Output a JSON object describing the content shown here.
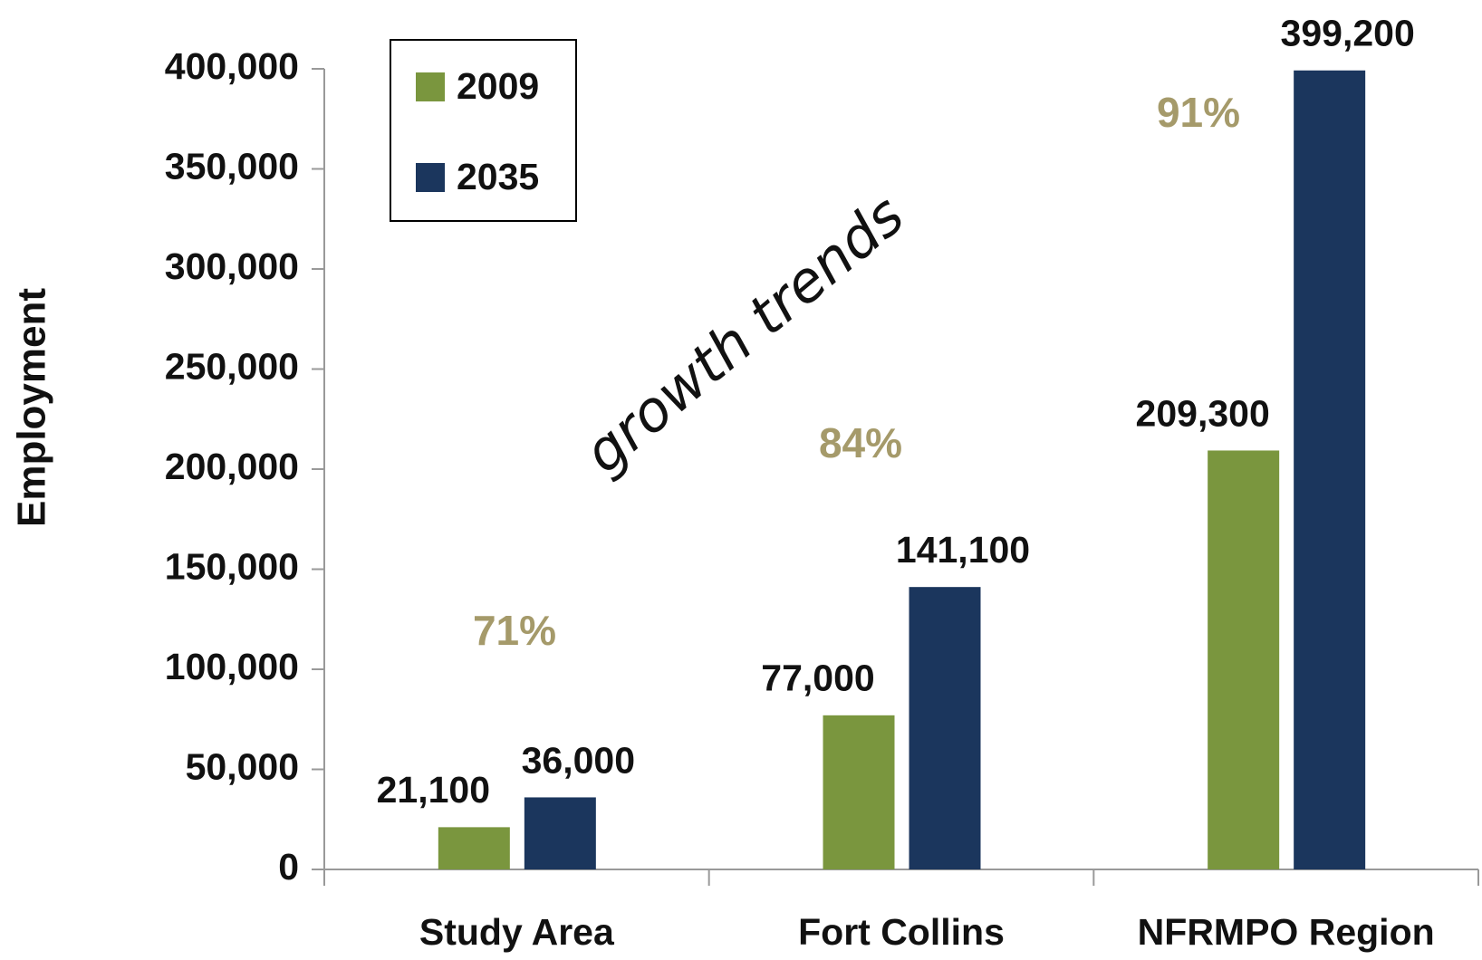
{
  "chart_data": {
    "type": "bar",
    "y_label": "Employment",
    "categories": [
      "Study Area",
      "Fort Collins",
      "NFRMPO Region"
    ],
    "series": [
      {
        "name": "2009",
        "color": "#7a963e",
        "values": [
          21100,
          77000,
          209300
        ],
        "value_labels": [
          "21,100",
          "77,000",
          "209,300"
        ]
      },
      {
        "name": "2035",
        "color": "#1b365d",
        "values": [
          36000,
          141100,
          399200
        ],
        "value_labels": [
          "36,000",
          "141,100",
          "399,200"
        ]
      }
    ],
    "ylim": [
      0,
      400000
    ],
    "yticks": [
      0,
      {
        "value": 50000,
        "label": "50,000"
      },
      {
        "value": 100000,
        "label": "100,000"
      },
      {
        "value": 150000,
        "label": "150,000"
      },
      {
        "value": 200000,
        "label": "200,000"
      },
      {
        "value": 250000,
        "label": "250,000"
      },
      {
        "value": 300000,
        "label": "300,000"
      },
      {
        "value": 350000,
        "label": "350,000"
      },
      {
        "value": 400000,
        "label": "400,000"
      }
    ],
    "annotations": [
      "71%",
      "84%",
      "91%",
      "growth trends"
    ],
    "legend": "upper left",
    "grid": false
  }
}
